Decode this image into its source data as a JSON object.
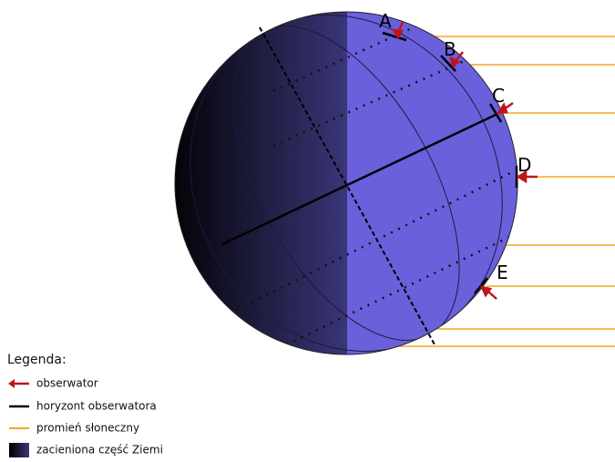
{
  "points": [
    {
      "label": "A"
    },
    {
      "label": "B"
    },
    {
      "label": "C"
    },
    {
      "label": "D"
    },
    {
      "label": "E"
    }
  ],
  "legend": {
    "title": "Legenda:",
    "items": [
      {
        "label": "obserwator"
      },
      {
        "label": "horyzont obserwatora"
      },
      {
        "label": "promień słoneczny"
      },
      {
        "label": "zacieniona część Ziemi"
      }
    ]
  }
}
